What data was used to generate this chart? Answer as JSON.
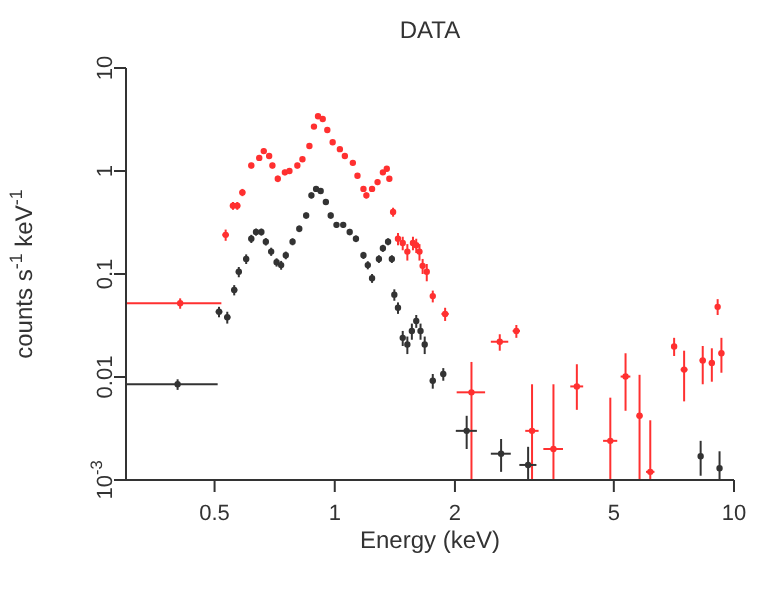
{
  "chart_data": {
    "type": "scatter",
    "title": "DATA",
    "xlabel": "Energy (keV)",
    "ylabel": "counts s$^{-1}$ keV$^{-1}$",
    "log": "xy",
    "grid": false,
    "legend": false,
    "marker": "circle",
    "xlim": [
      0.3,
      10
    ],
    "xticks": [
      0.5,
      1,
      2,
      5,
      10
    ],
    "ylim": [
      0.001,
      10
    ],
    "yticks": [
      {
        "value": 0.001,
        "label": "10$^{-3}$"
      },
      0.01,
      0.1,
      1,
      10
    ],
    "series": [
      {
        "color": "#ff3030",
        "x": [
          0.41,
          0.533,
          0.556,
          0.57,
          0.587,
          0.618,
          0.647,
          0.664,
          0.685,
          0.698,
          0.72,
          0.75,
          0.77,
          0.806,
          0.83,
          0.864,
          0.887,
          0.908,
          0.933,
          0.958,
          0.988,
          1.03,
          1.06,
          1.11,
          1.14,
          1.18,
          1.2,
          1.24,
          1.28,
          1.32,
          1.35,
          1.37,
          1.4,
          1.44,
          1.48,
          1.52,
          1.57,
          1.6,
          1.63,
          1.66,
          1.7,
          1.76,
          1.89,
          2.2,
          2.59,
          2.85,
          3.12,
          3.53,
          4.04,
          4.9,
          5.35,
          5.8,
          6.17,
          7.08,
          7.5,
          8.35,
          8.8,
          9.1,
          9.3
        ],
        "values": [
          0.052,
          0.24,
          0.46,
          0.46,
          0.62,
          1.13,
          1.34,
          1.56,
          1.4,
          1.13,
          0.84,
          0.97,
          1.0,
          1.13,
          1.3,
          1.75,
          2.7,
          3.4,
          3.2,
          2.5,
          1.9,
          1.63,
          1.4,
          1.2,
          0.9,
          0.67,
          0.58,
          0.67,
          0.78,
          0.97,
          1.05,
          0.84,
          0.4,
          0.22,
          0.2,
          0.165,
          0.2,
          0.19,
          0.165,
          0.12,
          0.105,
          0.061,
          0.041,
          0.0071,
          0.022,
          0.028,
          0.003,
          0.002,
          0.0081,
          0.0024,
          0.0101,
          0.0042,
          0.0012,
          0.0198,
          0.0118,
          0.0145,
          0.0137,
          0.048,
          0.017
        ],
        "xerrors": [
          0.11,
          0.01,
          0.01,
          0.01,
          0.01,
          0.01,
          0.01,
          0.01,
          0.01,
          0.01,
          0.01,
          0.01,
          0.01,
          0.01,
          0.01,
          0.01,
          0.01,
          0.01,
          0.01,
          0.01,
          0.01,
          0.01,
          0.01,
          0.01,
          0.01,
          0.01,
          0.01,
          0.01,
          0.01,
          0.01,
          0.01,
          0.01,
          0.01,
          0.01,
          0.01,
          0.01,
          0.01,
          0.01,
          0.01,
          0.01,
          0.01,
          0.02,
          0.04,
          0.18,
          0.13,
          0.06,
          0.12,
          0.2,
          0.15,
          0.2,
          0.15,
          0.1,
          0.15,
          0.1,
          0.15,
          0.15,
          0.15,
          0.1,
          0.15
        ],
        "errors": [
          0.006,
          0.03,
          0.04,
          0.04,
          0.05,
          0.07,
          0.08,
          0.09,
          0.08,
          0.07,
          0.06,
          0.06,
          0.06,
          0.07,
          0.07,
          0.09,
          0.12,
          0.14,
          0.13,
          0.11,
          0.09,
          0.08,
          0.07,
          0.06,
          0.05,
          0.04,
          0.04,
          0.04,
          0.05,
          0.05,
          0.06,
          0.05,
          0.04,
          0.03,
          0.03,
          0.03,
          0.03,
          0.03,
          0.03,
          0.02,
          0.02,
          0.008,
          0.006,
          [
            0.001,
            0.014
          ],
          [
            0.018,
            0.026
          ],
          [
            0.024,
            0.032
          ],
          [
            0.001,
            0.0085
          ],
          [
            0.001,
            0.0085
          ],
          [
            0.0048,
            0.0133
          ],
          [
            0.001,
            0.0063
          ],
          [
            0.0047,
            0.017
          ],
          [
            0.001,
            0.0105
          ],
          [
            0.001,
            0.0038
          ],
          [
            0.016,
            0.024
          ],
          [
            0.0058,
            0.018
          ],
          [
            0.0085,
            0.02
          ],
          [
            0.009,
            0.019
          ],
          [
            0.04,
            0.057
          ],
          [
            0.011,
            0.024
          ]
        ]
      },
      {
        "color": "#333333",
        "x": [
          0.404,
          0.513,
          0.538,
          0.56,
          0.575,
          0.6,
          0.618,
          0.635,
          0.655,
          0.672,
          0.693,
          0.715,
          0.734,
          0.754,
          0.784,
          0.815,
          0.848,
          0.874,
          0.898,
          0.922,
          0.95,
          0.977,
          1.01,
          1.05,
          1.09,
          1.13,
          1.18,
          1.21,
          1.24,
          1.29,
          1.32,
          1.36,
          1.39,
          1.41,
          1.44,
          1.48,
          1.52,
          1.56,
          1.6,
          1.64,
          1.68,
          1.76,
          1.87,
          2.14,
          2.61,
          3.05,
          8.25,
          9.2
        ],
        "values": [
          0.0085,
          0.043,
          0.038,
          0.07,
          0.105,
          0.14,
          0.22,
          0.256,
          0.256,
          0.206,
          0.165,
          0.13,
          0.122,
          0.152,
          0.206,
          0.275,
          0.37,
          0.58,
          0.67,
          0.64,
          0.5,
          0.37,
          0.3,
          0.3,
          0.256,
          0.22,
          0.152,
          0.122,
          0.091,
          0.14,
          0.178,
          0.206,
          0.14,
          0.063,
          0.047,
          0.024,
          0.0207,
          0.028,
          0.035,
          0.028,
          0.0207,
          0.0092,
          0.0107,
          0.003,
          0.0018,
          0.0014,
          0.0017,
          0.0013
        ],
        "xerrors": [
          0.105,
          0.01,
          0.01,
          0.01,
          0.01,
          0.01,
          0.01,
          0.01,
          0.01,
          0.01,
          0.01,
          0.01,
          0.01,
          0.01,
          0.01,
          0.01,
          0.01,
          0.01,
          0.01,
          0.01,
          0.01,
          0.01,
          0.01,
          0.01,
          0.01,
          0.01,
          0.01,
          0.01,
          0.01,
          0.01,
          0.01,
          0.01,
          0.01,
          0.01,
          0.01,
          0.01,
          0.01,
          0.01,
          0.01,
          0.01,
          0.01,
          0.03,
          0.03,
          0.13,
          0.15,
          0.15,
          0.1,
          0.1
        ],
        "errors": [
          0.001,
          0.005,
          0.005,
          0.008,
          0.012,
          0.015,
          0.02,
          0.02,
          0.02,
          0.017,
          0.015,
          0.012,
          0.012,
          0.013,
          0.016,
          0.02,
          0.025,
          0.04,
          0.04,
          0.04,
          0.03,
          0.025,
          0.02,
          0.02,
          0.018,
          0.016,
          0.012,
          0.011,
          0.009,
          0.012,
          0.014,
          0.016,
          0.012,
          0.008,
          0.006,
          0.004,
          0.004,
          0.005,
          0.005,
          0.005,
          0.004,
          0.0015,
          0.0015,
          [
            0.002,
            0.0042
          ],
          [
            0.0012,
            0.0025
          ],
          [
            0.001,
            0.0021
          ],
          [
            0.0011,
            0.0024
          ],
          [
            0.001,
            0.0019
          ]
        ]
      }
    ]
  }
}
